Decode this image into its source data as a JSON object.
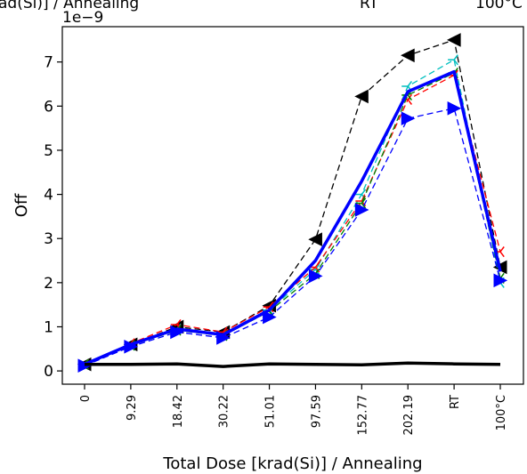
{
  "top_text": {
    "left": "ad(Si)] / Annealing",
    "middle": "RT",
    "right": "100°C"
  },
  "chart_data": {
    "type": "line",
    "xlabel": "Total Dose [krad(Si)] / Annealing",
    "ylabel": "Off",
    "offset_text": "1e−9",
    "categories": [
      "0",
      "9.29",
      "18.42",
      "30.22",
      "51.01",
      "97.59",
      "152.77",
      "202.19",
      "RT",
      "100°C"
    ],
    "ylim": [
      -0.3,
      7.8
    ],
    "yticks": [
      0,
      1,
      2,
      3,
      4,
      5,
      6,
      7
    ],
    "y_scale_multiplier": 1e-09,
    "grid": false,
    "series": [
      {
        "color": "#000000",
        "style": "dashed",
        "marker": "triangle-left",
        "values": [
          0.15,
          0.6,
          1.0,
          0.88,
          1.48,
          2.98,
          6.22,
          7.15,
          7.5,
          2.35
        ]
      },
      {
        "color": "#00bfbf",
        "style": "dashed",
        "marker": "tri-left",
        "values": [
          0.15,
          0.58,
          0.95,
          0.82,
          1.38,
          2.3,
          4.0,
          6.45,
          7.05,
          2.0
        ]
      },
      {
        "color": "#ff0000",
        "style": "dashed",
        "marker": "tri-left",
        "values": [
          0.15,
          0.62,
          1.05,
          0.88,
          1.45,
          2.35,
          3.85,
          6.15,
          6.7,
          2.7
        ]
      },
      {
        "color": "#008000",
        "style": "dashed",
        "marker": "tri-left",
        "values": [
          0.15,
          0.58,
          0.92,
          0.8,
          1.35,
          2.2,
          3.8,
          6.25,
          6.75,
          2.1
        ]
      },
      {
        "color": "#0000ff",
        "style": "dashed",
        "marker": "triangle-right",
        "values": [
          0.12,
          0.55,
          0.88,
          0.75,
          1.22,
          2.15,
          3.65,
          5.72,
          5.95,
          2.05
        ]
      },
      {
        "color": "#0000ff",
        "style": "solid-thick",
        "marker": "none",
        "values": [
          0.15,
          0.6,
          0.95,
          0.82,
          1.38,
          2.5,
          4.3,
          6.33,
          6.78,
          2.25
        ]
      },
      {
        "color": "#000000",
        "style": "solid-thick",
        "marker": "none",
        "values": [
          0.15,
          0.15,
          0.16,
          0.1,
          0.16,
          0.15,
          0.14,
          0.18,
          0.16,
          0.15
        ]
      }
    ]
  }
}
